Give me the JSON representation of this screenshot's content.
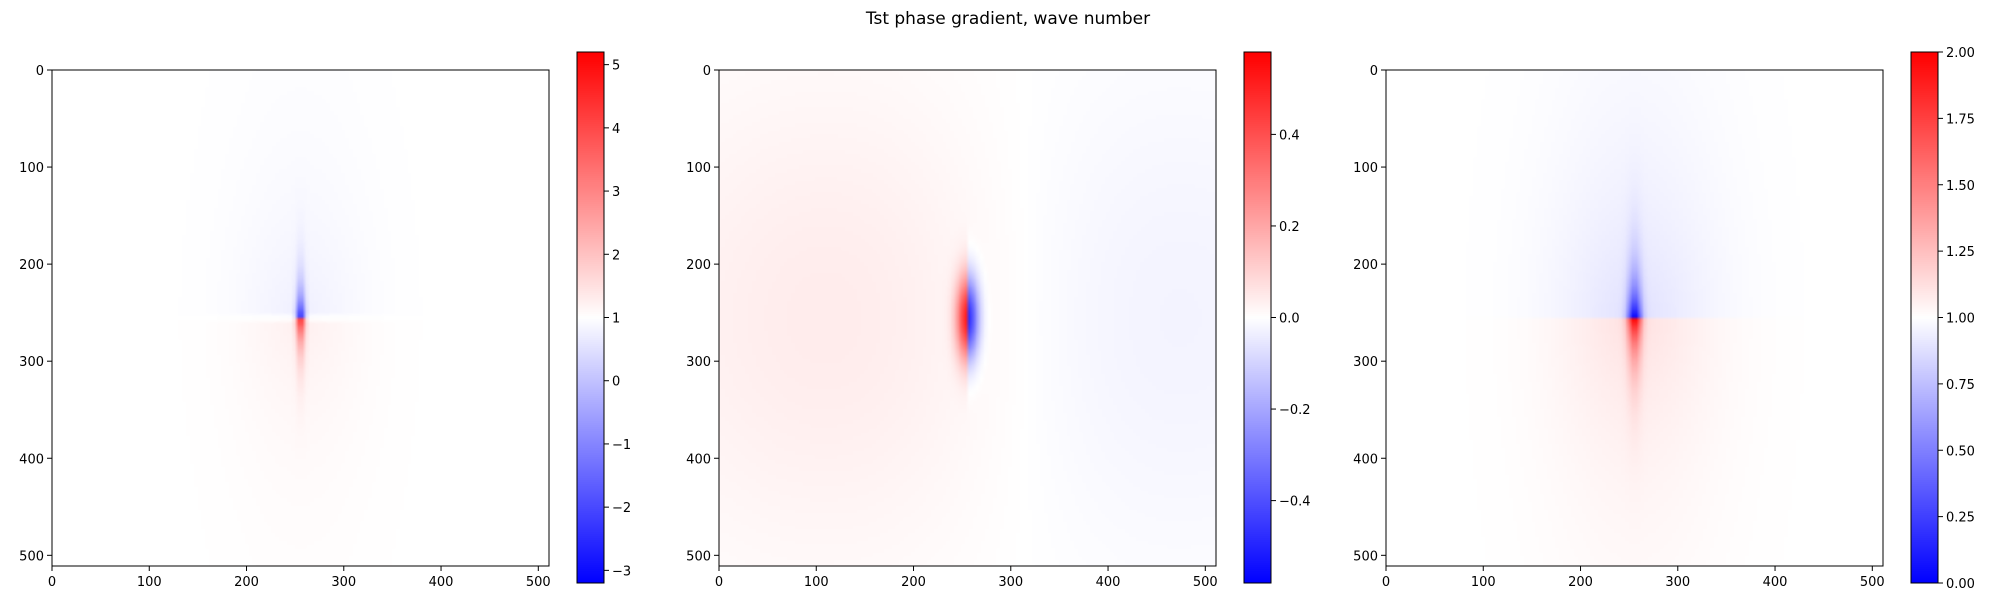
{
  "figure": {
    "suptitle": "Tst phase gradient, wave number"
  },
  "chart_data": [
    {
      "type": "heatmap",
      "panel": "left",
      "colormap": "bwr",
      "xlim": [
        0,
        511
      ],
      "ylim": [
        511,
        0
      ],
      "x_ticks": [
        0,
        100,
        200,
        300,
        400,
        500
      ],
      "y_ticks": [
        0,
        100,
        200,
        300,
        400,
        500
      ],
      "x_tick_labels": [
        "0",
        "100",
        "200",
        "300",
        "400",
        "500"
      ],
      "y_tick_labels": [
        "0",
        "100",
        "200",
        "300",
        "400",
        "500"
      ],
      "colorbar": {
        "vmin": -3.2,
        "vmax": 5.2,
        "ticks": [
          -3,
          -2,
          -1,
          0,
          1,
          2,
          3,
          4,
          5
        ],
        "tick_labels": [
          "−3",
          "−2",
          "−1",
          "0",
          "1",
          "2",
          "3",
          "4",
          "5"
        ]
      },
      "field": {
        "pattern": "two-lobe dipole along vertical axis",
        "center": [
          256,
          256
        ],
        "negative_lobe": "above center (y < 256)",
        "positive_lobe": "below center (y > 256)",
        "background_value": 1.0
      }
    },
    {
      "type": "heatmap",
      "panel": "middle",
      "colormap": "bwr",
      "xlim": [
        0,
        511
      ],
      "ylim": [
        511,
        0
      ],
      "x_ticks": [
        0,
        100,
        200,
        300,
        400,
        500
      ],
      "y_ticks": [
        0,
        100,
        200,
        300,
        400,
        500
      ],
      "x_tick_labels": [
        "0",
        "100",
        "200",
        "300",
        "400",
        "500"
      ],
      "y_tick_labels": [
        "0",
        "100",
        "200",
        "300",
        "400",
        "500"
      ],
      "colorbar": {
        "vmin": -0.58,
        "vmax": 0.58,
        "ticks": [
          -0.4,
          -0.2,
          0.0,
          0.2,
          0.4
        ],
        "tick_labels": [
          "−0.4",
          "−0.2",
          "0.0",
          "0.2",
          "0.4"
        ]
      },
      "field": {
        "pattern": "horizontal dipole",
        "center": [
          256,
          256
        ],
        "positive_lobe": "left of center (x < 256)",
        "negative_lobe": "right of center (x > 256)",
        "background_value": 0.0
      }
    },
    {
      "type": "heatmap",
      "panel": "right",
      "colormap": "bwr",
      "xlim": [
        0,
        511
      ],
      "ylim": [
        511,
        0
      ],
      "x_ticks": [
        0,
        100,
        200,
        300,
        400,
        500
      ],
      "y_ticks": [
        0,
        100,
        200,
        300,
        400,
        500
      ],
      "x_tick_labels": [
        "0",
        "100",
        "200",
        "300",
        "400",
        "500"
      ],
      "y_tick_labels": [
        "0",
        "100",
        "200",
        "300",
        "400",
        "500"
      ],
      "colorbar": {
        "vmin": 0.0,
        "vmax": 2.0,
        "ticks": [
          0.0,
          0.25,
          0.5,
          0.75,
          1.0,
          1.25,
          1.5,
          1.75,
          2.0
        ],
        "tick_labels": [
          "0.00",
          "0.25",
          "0.50",
          "0.75",
          "1.00",
          "1.25",
          "1.50",
          "1.75",
          "2.00"
        ]
      },
      "field": {
        "pattern": "four-lobe vertical dipole",
        "center": [
          256,
          256
        ],
        "negative_lobe": "above center (y < 256)",
        "positive_lobe": "below center (y > 256)",
        "background_value": 1.0
      }
    }
  ]
}
